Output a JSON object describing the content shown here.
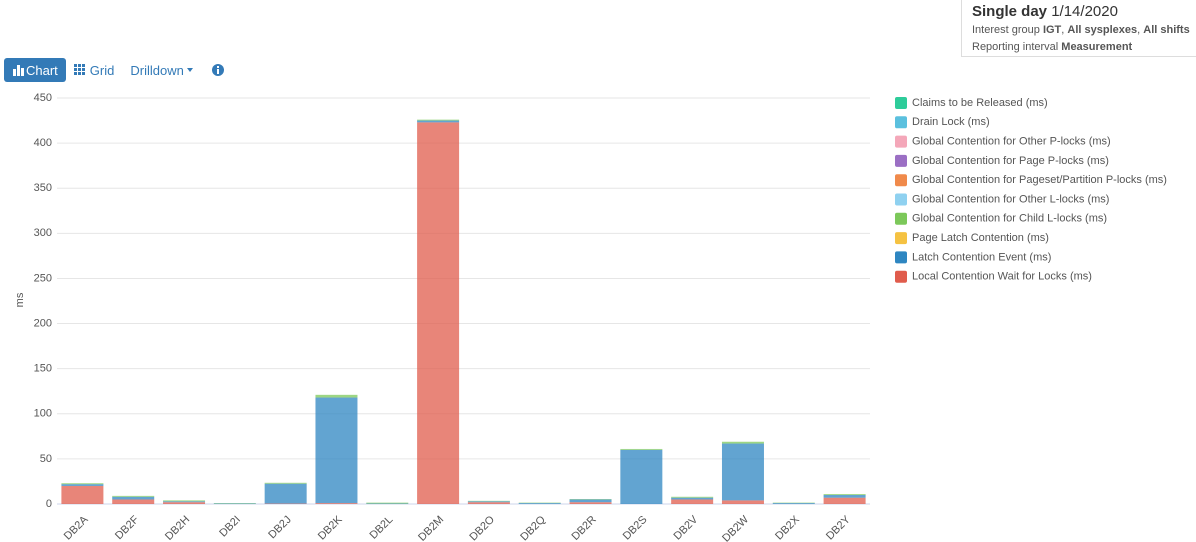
{
  "header": {
    "title": "Single day",
    "date": "1/14/2020",
    "interest_line": [
      "Interest group ",
      "IGT",
      ", ",
      "All sysplexes",
      ", ",
      "All shifts"
    ],
    "interval_line": [
      "Reporting interval ",
      "Measurement"
    ]
  },
  "toolbar": {
    "chart": "Chart",
    "grid": "Grid",
    "drilldown": "Drilldown"
  },
  "chart_data": {
    "type": "stacked-bar",
    "y_label": "ms",
    "categories": [
      "DB2A",
      "DB2F",
      "DB2H",
      "DB2I",
      "DB2J",
      "DB2K",
      "DB2L",
      "DB2M",
      "DB2O",
      "DB2Q",
      "DB2R",
      "DB2S",
      "DB2V",
      "DB2W",
      "DB2X",
      "DB2Y"
    ],
    "ylim": [
      0,
      450
    ],
    "yticks": [
      0,
      50,
      100,
      150,
      200,
      250,
      300,
      350,
      400,
      450
    ],
    "grid": true,
    "series": [
      {
        "name": "Claims to be Released (ms)",
        "color": "#2ecc9a",
        "values": [
          0,
          0,
          0,
          0,
          0,
          0,
          0,
          0,
          0,
          0,
          0,
          0,
          0,
          0,
          0,
          0
        ]
      },
      {
        "name": "Drain Lock (ms)",
        "color": "#5bc0de",
        "values": [
          0,
          0,
          0,
          0,
          0,
          0,
          0,
          0,
          0,
          0,
          0,
          0,
          0,
          0,
          0,
          0
        ]
      },
      {
        "name": "Global Contention for Other P-locks (ms)",
        "color": "#f4a7b9",
        "values": [
          0,
          0,
          0,
          0,
          0,
          0,
          0,
          0,
          0,
          0,
          0,
          0,
          0,
          0,
          0,
          0
        ]
      },
      {
        "name": "Global Contention for Page P-locks (ms)",
        "color": "#9b6fc4",
        "values": [
          0,
          0,
          0,
          0,
          0,
          0,
          0,
          0,
          0,
          0,
          0,
          0,
          0,
          0,
          0,
          0
        ]
      },
      {
        "name": "Global Contention for Pageset/Partition P-locks (ms)",
        "color": "#f08a4b",
        "values": [
          0,
          0,
          0,
          0,
          0,
          0,
          0,
          0,
          0,
          0,
          0,
          0,
          0,
          0,
          0,
          0
        ]
      },
      {
        "name": "Global Contention for Other L-locks (ms)",
        "color": "#8fd1f0",
        "values": [
          0,
          0,
          0,
          0,
          0,
          0,
          0,
          0,
          0,
          0,
          0,
          0,
          0,
          0,
          0,
          0
        ]
      },
      {
        "name": "Global Contention for Child L-locks (ms)",
        "color": "#7cc85a",
        "values": [
          1,
          1,
          1,
          0.5,
          1,
          3,
          1,
          1,
          0.5,
          0.5,
          0.5,
          1,
          1,
          2,
          0.5,
          1
        ]
      },
      {
        "name": "Page Latch Contention (ms)",
        "color": "#f5c242",
        "values": [
          0,
          0,
          0,
          0,
          0,
          0,
          0,
          0,
          0,
          0,
          0,
          0,
          0,
          0,
          0,
          0
        ]
      },
      {
        "name": "Latch Contention Event (ms)",
        "color": "#2e86c1",
        "values": [
          2,
          3,
          1,
          0.5,
          22,
          117,
          0.5,
          2,
          1,
          1,
          3,
          60,
          2,
          63,
          1,
          3
        ]
      },
      {
        "name": "Local Contention Wait for Locks (ms)",
        "color": "#e05c4c",
        "values": [
          20,
          5,
          2,
          0,
          0.5,
          1,
          0,
          423,
          2,
          0,
          2,
          0,
          5,
          4,
          0,
          7
        ]
      }
    ]
  }
}
